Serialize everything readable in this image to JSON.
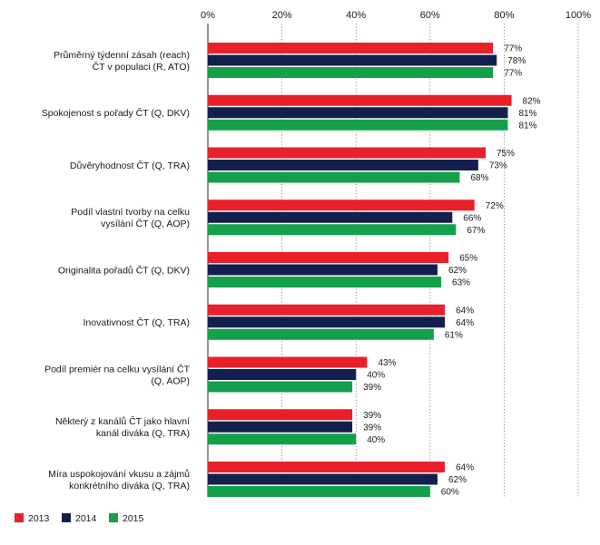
{
  "chart_data": {
    "type": "bar",
    "orientation": "horizontal",
    "title": "",
    "xlabel": "",
    "ylabel": "",
    "xlim": [
      0,
      100
    ],
    "ticks": [
      "0%",
      "20%",
      "40%",
      "60%",
      "80%",
      "100%"
    ],
    "tick_values": [
      0,
      20,
      40,
      60,
      80,
      100
    ],
    "value_suffix": "%",
    "grid": true,
    "legend_position": "bottom-left",
    "categories": [
      [
        "Průměrný týdenní zásah (reach)",
        "ČT v populaci (R, ATO)"
      ],
      [
        "Spokojenost s pořady ČT (Q, DKV)"
      ],
      [
        "Důvěryhodnost ČT (Q, TRA)"
      ],
      [
        "Podíl vlastní tvorby na celku",
        "vysílání ČT (Q, AOP)"
      ],
      [
        "Originalita pořadů ČT (Q, DKV)"
      ],
      [
        "Inovativnost ČT (Q, TRA)"
      ],
      [
        "Podíl premiér na celku vysílání ČT",
        "(Q, AOP)"
      ],
      [
        "Některý z kanálů ČT jako hlavní",
        "kanál diváka (Q, TRA)"
      ],
      [
        "Míra uspokojování vkusu a zájmů",
        "konkrétního diváka (Q, TRA)"
      ]
    ],
    "series": [
      {
        "name": "2013",
        "color": "#e8202a",
        "values": [
          77,
          82,
          75,
          72,
          65,
          64,
          43,
          39,
          64
        ]
      },
      {
        "name": "2014",
        "color": "#13204e",
        "values": [
          78,
          81,
          73,
          66,
          62,
          64,
          40,
          39,
          62
        ]
      },
      {
        "name": "2015",
        "color": "#14a04a",
        "values": [
          77,
          81,
          68,
          67,
          63,
          61,
          39,
          40,
          60
        ]
      }
    ]
  }
}
